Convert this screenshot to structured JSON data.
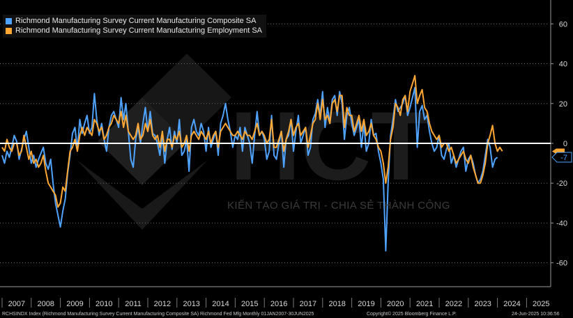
{
  "chart_data": {
    "type": "line",
    "x_start": 2007.0,
    "x_step_months": 1,
    "ylim": [
      -72,
      72
    ],
    "yticks": [
      60,
      40,
      20,
      0,
      -20,
      -40,
      -60
    ],
    "ytick_labels": [
      "60",
      "40",
      "20",
      "0",
      "-20",
      "-40",
      "-60"
    ],
    "xtick_labels": [
      "2007",
      "2008",
      "2009",
      "2010",
      "2011",
      "2012",
      "2013",
      "2014",
      "2015",
      "2016",
      "2017",
      "2018",
      "2019",
      "2020",
      "2021",
      "2022",
      "2023",
      "2024",
      "2025"
    ],
    "zero_line": 0,
    "last_value_label": "-7",
    "series": [
      {
        "name": "Richmond Manufacturing Survey Current Manufacturing Composite SA",
        "color": "#4fa3ff",
        "values": [
          -6,
          -10,
          -4,
          -7,
          -2,
          4,
          1,
          -8,
          -3,
          2,
          6,
          -2,
          -10,
          -6,
          -12,
          -8,
          -5,
          -2,
          -10,
          -13,
          -8,
          -20,
          -30,
          -36,
          -42,
          -34,
          -28,
          -15,
          -6,
          5,
          8,
          -3,
          12,
          5,
          10,
          14,
          5,
          8,
          25,
          12,
          4,
          10,
          2,
          -4,
          8,
          14,
          16,
          12,
          8,
          23,
          12,
          20,
          6,
          -8,
          -12,
          2,
          8,
          0,
          10,
          18,
          6,
          16,
          5,
          4,
          0,
          -6,
          4,
          -10,
          2,
          8,
          -3,
          6,
          0,
          12,
          -6,
          -4,
          2,
          -14,
          8,
          12,
          6,
          4,
          10,
          6,
          -4,
          8,
          -2,
          2,
          6,
          -6,
          10,
          14,
          20,
          12,
          6,
          -2,
          4,
          2,
          8,
          -4,
          8,
          4,
          0,
          -10,
          4,
          16,
          4,
          6,
          2,
          -8,
          -4,
          14,
          -6,
          -8,
          0,
          6,
          -12,
          2,
          4,
          12,
          -4,
          6,
          14,
          0,
          4,
          8,
          -6,
          -2,
          12,
          15,
          22,
          14,
          26,
          8,
          18,
          10,
          22,
          24,
          14,
          26,
          20,
          2,
          14,
          18,
          10,
          4,
          8,
          12,
          -2,
          10,
          -4,
          0,
          12,
          4,
          5,
          -4,
          -10,
          -18,
          -54,
          -20,
          4,
          12,
          22,
          16,
          18,
          20,
          24,
          14,
          18,
          23,
          28,
          -2,
          16,
          19,
          12,
          14,
          6,
          0,
          -4,
          -2,
          4,
          -6,
          -8,
          -3,
          0,
          -10,
          -6,
          -12,
          -8,
          -4,
          -2,
          -14,
          -8,
          -6,
          -10,
          -16,
          -20,
          -18,
          -14,
          -6,
          2,
          -2,
          -12,
          -8,
          -7
        ]
      },
      {
        "name": "Richmond Manufacturing Survey Current Manufacturing Employment SA",
        "color": "#ffa733",
        "values": [
          -2,
          -4,
          2,
          -2,
          -4,
          0,
          0,
          -6,
          -4,
          4,
          -2,
          -8,
          -4,
          -10,
          -8,
          -12,
          -10,
          -6,
          -14,
          -20,
          -22,
          -24,
          -26,
          -32,
          -30,
          -22,
          -24,
          -14,
          -4,
          -2,
          2,
          -4,
          4,
          8,
          4,
          8,
          6,
          4,
          12,
          10,
          6,
          8,
          2,
          4,
          8,
          10,
          14,
          12,
          10,
          16,
          8,
          14,
          6,
          4,
          2,
          4,
          10,
          2,
          4,
          10,
          6,
          12,
          4,
          2,
          4,
          -2,
          6,
          -4,
          2,
          2,
          -2,
          4,
          2,
          6,
          -2,
          0,
          4,
          -4,
          4,
          6,
          4,
          2,
          6,
          4,
          2,
          6,
          0,
          4,
          6,
          -2,
          6,
          8,
          10,
          8,
          6,
          4,
          4,
          6,
          4,
          2,
          6,
          4,
          4,
          2,
          6,
          10,
          4,
          6,
          4,
          0,
          2,
          12,
          -2,
          -2,
          2,
          6,
          -4,
          2,
          6,
          12,
          4,
          8,
          10,
          4,
          6,
          8,
          -2,
          4,
          10,
          12,
          20,
          12,
          22,
          12,
          14,
          10,
          20,
          22,
          16,
          24,
          24,
          8,
          18,
          14,
          14,
          6,
          10,
          14,
          6,
          12,
          4,
          6,
          10,
          4,
          2,
          -2,
          -4,
          -10,
          -20,
          -12,
          2,
          8,
          20,
          18,
          14,
          22,
          24,
          16,
          26,
          30,
          34,
          20,
          24,
          27,
          18,
          16,
          10,
          6,
          4,
          2,
          4,
          -2,
          0,
          0,
          -4,
          -2,
          -6,
          -10,
          -8,
          -6,
          -4,
          -8,
          -10,
          -6,
          -12,
          -16,
          -20,
          -20,
          -16,
          -10,
          0,
          4,
          9,
          0,
          -4,
          -2,
          -4
        ]
      }
    ]
  },
  "footer": {
    "source": "RCHSINDX Index (Richmond Manufacturing Survey Current Manufacturing Composite SA) Richmond Fed Mfg  Monthly 01JAN2007-30JUN2025",
    "copyright": "Copyright© 2025 Bloomberg Finance L.P.",
    "timestamp": "24-Jun-2025 10:36:56"
  },
  "watermark": {
    "logo_text": "HCT",
    "tagline": "KIẾN TẠO GIÁ TRỊ - CHIA SẺ THÀNH CÔNG"
  }
}
